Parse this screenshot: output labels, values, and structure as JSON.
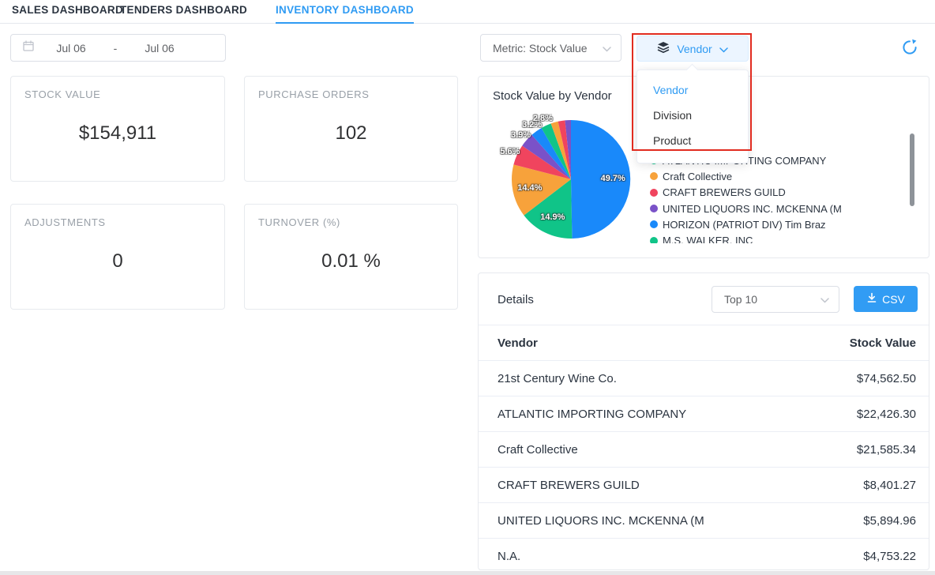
{
  "colors": {
    "accent": "#2f9bf3",
    "annotation_red": "#e12c20",
    "pie_blue": "#1989fa",
    "pie_green": "#10c488",
    "pie_orange": "#f7a23b",
    "pie_red": "#f0445e",
    "pie_purple": "#7a52c8"
  },
  "tabs": [
    {
      "label": "SALES DASHBOARD",
      "active": false
    },
    {
      "label": "TENDERS DASHBOARD",
      "active": false
    },
    {
      "label": "INVENTORY DASHBOARD",
      "active": true
    }
  ],
  "controls": {
    "date_start": "Jul 06",
    "date_separator": "-",
    "date_end": "Jul 06",
    "metric_select_value": "Metric: Stock Value",
    "group_by_value": "Vendor"
  },
  "group_dropdown": {
    "items": [
      {
        "label": "Vendor",
        "active": true
      },
      {
        "label": "Division",
        "active": false
      },
      {
        "label": "Product",
        "active": false
      }
    ]
  },
  "kpis": [
    {
      "label": "STOCK VALUE",
      "value": "$154,911"
    },
    {
      "label": "PURCHASE ORDERS",
      "value": "102"
    },
    {
      "label": "ADJUSTMENTS",
      "value": "0"
    },
    {
      "label": "TURNOVER (%)",
      "value": "0.01 %"
    }
  ],
  "chart_data": {
    "type": "pie",
    "title": "Stock Value by Vendor",
    "unit": "percent",
    "legend_position": "right",
    "slices": [
      {
        "name": "21st Century Wine Co.",
        "pct": 49.7,
        "label": "49.7%",
        "color": "#1989fa"
      },
      {
        "name": "ATLANTIC IMPORTING COMPANY",
        "pct": 14.9,
        "label": "14.9%",
        "color": "#10c488"
      },
      {
        "name": "Craft Collective",
        "pct": 14.4,
        "label": "14.4%",
        "color": "#f7a23b"
      },
      {
        "name": "CRAFT BREWERS GUILD",
        "pct": 5.6,
        "label": "5.6%",
        "color": "#f0445e"
      },
      {
        "name": "UNITED LIQUORS INC. MCKENNA (M",
        "pct": 3.9,
        "label": "3.9%",
        "color": "#7a52c8"
      },
      {
        "name": "HORIZON (PATRIOT DIV) Tim Braz",
        "pct": 3.2,
        "label": "3.2%",
        "color": "#1989fa"
      },
      {
        "name": "M.S. WALKER, INC",
        "pct": 2.8,
        "label": "2.8%",
        "color": "#10c488"
      },
      {
        "name": "",
        "pct": 2.0,
        "label": null,
        "color": "#f7a23b"
      },
      {
        "name": "",
        "pct": 1.9,
        "label": null,
        "color": "#f0445e"
      },
      {
        "name": "",
        "pct": 1.6,
        "label": null,
        "color": "#7a52c8"
      }
    ],
    "visible_legend": [
      {
        "label": "ATLANTIC IMPORTING COMPANY",
        "color": "#10c488"
      },
      {
        "label": "Craft Collective",
        "color": "#f7a23b"
      },
      {
        "label": "CRAFT BREWERS GUILD",
        "color": "#f0445e"
      },
      {
        "label": "UNITED LIQUORS INC. MCKENNA (M",
        "color": "#7a52c8"
      },
      {
        "label": "HORIZON (PATRIOT DIV) Tim Braz",
        "color": "#1989fa"
      },
      {
        "label": "M.S. WALKER, INC",
        "color": "#10c488"
      }
    ]
  },
  "details": {
    "title": "Details",
    "top_filter_value": "Top 10",
    "csv_label": "CSV",
    "columns": [
      "Vendor",
      "Stock Value"
    ],
    "rows": [
      [
        "21st Century Wine Co.",
        "$74,562.50"
      ],
      [
        "ATLANTIC IMPORTING COMPANY",
        "$22,426.30"
      ],
      [
        "Craft Collective",
        "$21,585.34"
      ],
      [
        "CRAFT BREWERS GUILD",
        "$8,401.27"
      ],
      [
        "UNITED LIQUORS INC. MCKENNA (M",
        "$5,894.96"
      ],
      [
        "N.A.",
        "$4,753.22"
      ]
    ]
  }
}
